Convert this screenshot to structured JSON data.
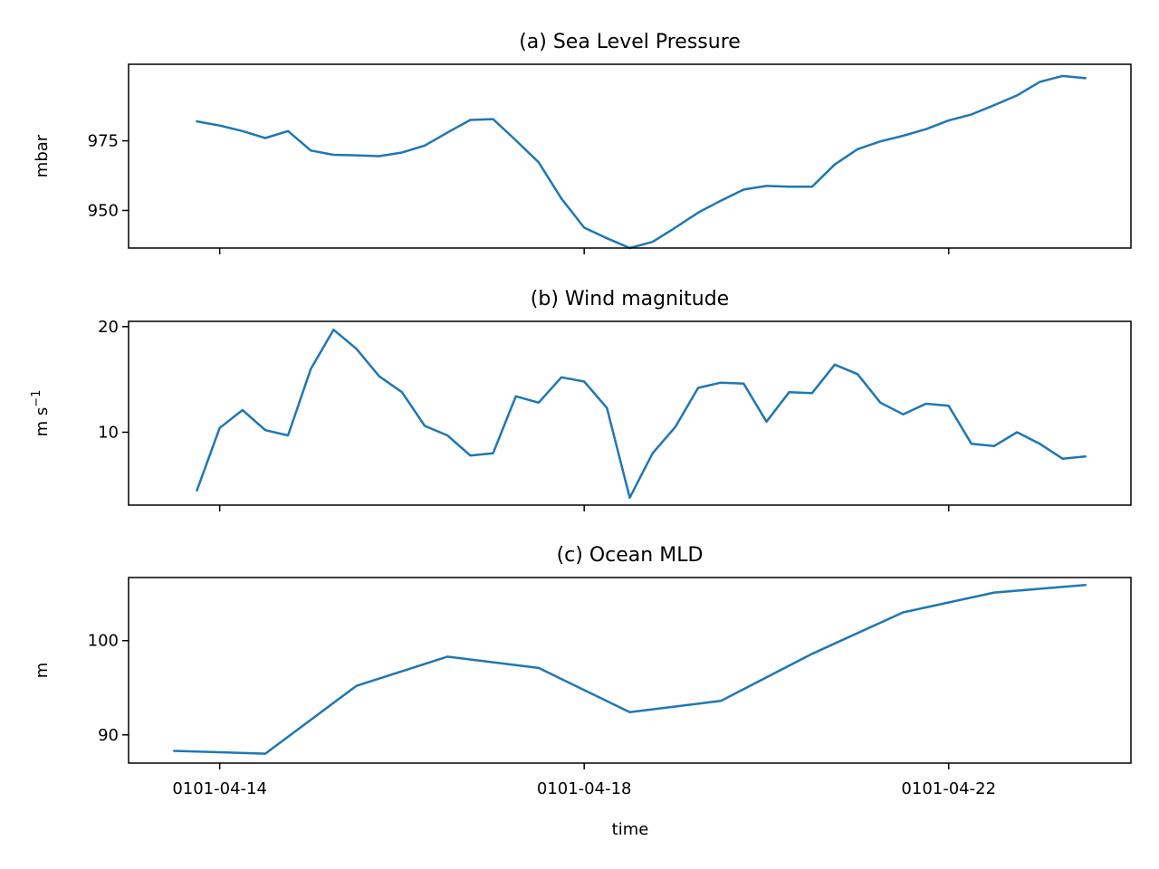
{
  "figure": {
    "xlabel": "time"
  },
  "chart_data": [
    {
      "type": "line",
      "title": "(a) Sea Level Pressure",
      "ylabel": "mbar",
      "ylabel_main": "mbar",
      "ylabel_sup": "",
      "ylim": [
        936.5,
        1002.5
      ],
      "yticks": [
        950,
        975
      ],
      "xlim": [
        "0101-04-13T00:00",
        "0101-04-24T00:00"
      ],
      "xticks": [
        "0101-04-14",
        "0101-04-18",
        "0101-04-22"
      ],
      "color": "#1f77b4",
      "x": [
        "0101-04-13T18:00",
        "0101-04-14T00:00",
        "0101-04-14T06:00",
        "0101-04-14T12:00",
        "0101-04-14T18:00",
        "0101-04-15T00:00",
        "0101-04-15T06:00",
        "0101-04-15T12:00",
        "0101-04-15T18:00",
        "0101-04-16T00:00",
        "0101-04-16T06:00",
        "0101-04-16T12:00",
        "0101-04-16T18:00",
        "0101-04-17T00:00",
        "0101-04-17T06:00",
        "0101-04-17T12:00",
        "0101-04-17T18:00",
        "0101-04-18T00:00",
        "0101-04-18T06:00",
        "0101-04-18T12:00",
        "0101-04-18T18:00",
        "0101-04-19T00:00",
        "0101-04-19T06:00",
        "0101-04-19T12:00",
        "0101-04-19T18:00",
        "0101-04-20T00:00",
        "0101-04-20T06:00",
        "0101-04-20T12:00",
        "0101-04-20T18:00",
        "0101-04-21T00:00",
        "0101-04-21T06:00",
        "0101-04-21T12:00",
        "0101-04-21T18:00",
        "0101-04-22T00:00",
        "0101-04-22T06:00",
        "0101-04-22T12:00",
        "0101-04-22T18:00",
        "0101-04-23T00:00",
        "0101-04-23T06:00",
        "0101-04-23T12:00"
      ],
      "y": [
        982,
        980.5,
        978.5,
        976,
        978.5,
        971.5,
        970,
        969.8,
        969.5,
        970.8,
        973.3,
        978,
        982.5,
        982.8,
        975.2,
        967.3,
        954.3,
        943.8,
        940,
        936.5,
        938.7,
        943.8,
        949.2,
        953.5,
        957.5,
        958.8,
        958.5,
        958.5,
        966.5,
        972,
        974.8,
        976.8,
        979.2,
        982.3,
        984.5,
        987.8,
        991.3,
        996.2,
        998.3,
        997.5
      ]
    },
    {
      "type": "line",
      "title": "(b) Wind magnitude",
      "ylabel": "m s⁻¹",
      "ylabel_main": "m s",
      "ylabel_sup": "−1",
      "ylim": [
        3.1,
        20.5
      ],
      "yticks": [
        10,
        20
      ],
      "xlim": [
        "0101-04-13T00:00",
        "0101-04-24T00:00"
      ],
      "xticks": [
        "0101-04-14",
        "0101-04-18",
        "0101-04-22"
      ],
      "color": "#1f77b4",
      "x": [
        "0101-04-13T18:00",
        "0101-04-14T00:00",
        "0101-04-14T06:00",
        "0101-04-14T12:00",
        "0101-04-14T18:00",
        "0101-04-15T00:00",
        "0101-04-15T06:00",
        "0101-04-15T12:00",
        "0101-04-15T18:00",
        "0101-04-16T00:00",
        "0101-04-16T06:00",
        "0101-04-16T12:00",
        "0101-04-16T18:00",
        "0101-04-17T00:00",
        "0101-04-17T06:00",
        "0101-04-17T12:00",
        "0101-04-17T18:00",
        "0101-04-18T00:00",
        "0101-04-18T06:00",
        "0101-04-18T12:00",
        "0101-04-18T18:00",
        "0101-04-19T00:00",
        "0101-04-19T06:00",
        "0101-04-19T12:00",
        "0101-04-19T18:00",
        "0101-04-20T00:00",
        "0101-04-20T06:00",
        "0101-04-20T12:00",
        "0101-04-20T18:00",
        "0101-04-21T00:00",
        "0101-04-21T06:00",
        "0101-04-21T12:00",
        "0101-04-21T18:00",
        "0101-04-22T00:00",
        "0101-04-22T06:00",
        "0101-04-22T12:00",
        "0101-04-22T18:00",
        "0101-04-23T00:00",
        "0101-04-23T06:00",
        "0101-04-23T12:00"
      ],
      "y": [
        4.5,
        10.4,
        12.1,
        10.2,
        9.7,
        16,
        19.7,
        17.9,
        15.3,
        13.8,
        10.6,
        9.7,
        7.8,
        8,
        13.4,
        12.8,
        15.2,
        14.8,
        12.3,
        3.8,
        8,
        10.5,
        14.2,
        14.7,
        14.6,
        11,
        13.8,
        13.7,
        16.4,
        15.5,
        12.8,
        11.7,
        12.7,
        12.5,
        8.9,
        8.7,
        10,
        8.9,
        7.5,
        7.7
      ]
    },
    {
      "type": "line",
      "title": "(c) Ocean MLD",
      "ylabel": "m",
      "ylabel_main": "m",
      "ylabel_sup": "",
      "ylim": [
        87,
        106.7
      ],
      "yticks": [
        90,
        100
      ],
      "xlim": [
        "0101-04-13T00:00",
        "0101-04-24T00:00"
      ],
      "xticks": [
        "0101-04-14",
        "0101-04-18",
        "0101-04-22"
      ],
      "color": "#1f77b4",
      "x": [
        "0101-04-13T12:00",
        "0101-04-14T12:00",
        "0101-04-15T12:00",
        "0101-04-16T12:00",
        "0101-04-17T12:00",
        "0101-04-18T12:00",
        "0101-04-19T12:00",
        "0101-04-20T12:00",
        "0101-04-21T12:00",
        "0101-04-22T12:00",
        "0101-04-23T12:00"
      ],
      "y": [
        88.3,
        88,
        95.2,
        98.3,
        97.1,
        92.4,
        93.6,
        98.6,
        103,
        105.1,
        105.9
      ]
    }
  ]
}
